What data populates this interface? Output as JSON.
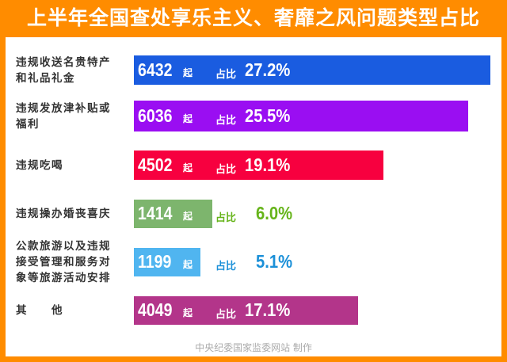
{
  "title": "上半年全国查处享乐主义、奢靡之风问题类型占比",
  "chart_data": {
    "type": "bar",
    "orientation": "horizontal",
    "title": "上半年全国查处享乐主义、奢靡之风问题类型占比",
    "unit": "起",
    "ratio_label": "占比",
    "categories": [
      "违规收送名贵特产和礼品礼金",
      "违规发放津补贴或福利",
      "违规吃喝",
      "违规操办婚丧喜庆",
      "公款旅游以及违规接受管理和服务对象等旅游活动安排",
      "其　　他"
    ],
    "values": [
      6432,
      6036,
      4502,
      1414,
      1199,
      4049
    ],
    "percents": [
      "27.2%",
      "25.5%",
      "19.1%",
      "6.0%",
      "5.1%",
      "17.1%"
    ],
    "colors": [
      "#1a5ce0",
      "#9a0ef2",
      "#f7003f",
      "#7db56d",
      "#50b5f0",
      "#b3358a"
    ],
    "text_colors": [
      "#ffffff",
      "#ffffff",
      "#ffffff",
      "#66b41a",
      "#1b90d8",
      "#ffffff"
    ]
  },
  "footer": "中央纪委国家监委网站 制作"
}
